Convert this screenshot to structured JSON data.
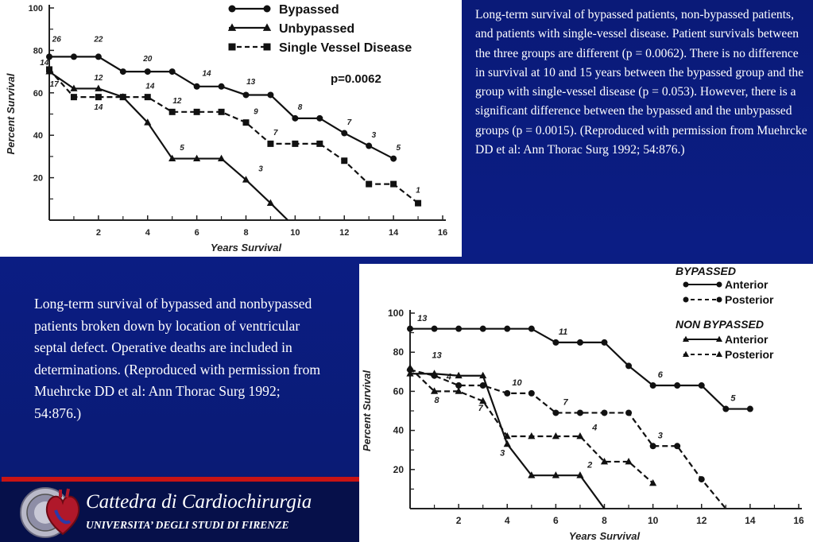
{
  "caption_top": "Long-term survival of bypassed patients, non-bypassed patients, and patients with single-vessel disease. Patient survivals between the three groups are different (p = 0.0062). There is no difference in survival at 10 and 15 years between the bypassed group and the group with single-vessel disease (p = 0.053). However, there is a significant difference between the bypassed and the unbypassed groups (p = 0.0015). (Reproduced with permission from Muehrcke DD et al: Ann Thorac Surg 1992; 54:876.)",
  "caption_bottom": "Long-term survival of bypassed and nonbypassed patients broken down by location of ventricular septal defect. Operative deaths are included in determinations. (Reproduced with permission from Muehrcke DD et al: Ann Thorac Surg 1992; 54:876.)",
  "footer": {
    "title": "Cattedra di Cardiochirurgia",
    "subtitle": "UNIVERSITA’ DEGLI STUDI DI FIRENZE"
  },
  "colors": {
    "background": "#0b1d84",
    "accent_line": "#c81414",
    "chart_ink": "#111111",
    "caption_text": "#ffffff"
  },
  "chart_data": [
    {
      "type": "line",
      "title": "",
      "xlabel": "Years Survival",
      "ylabel": "Percent Survival",
      "xlim": [
        0,
        16
      ],
      "ylim": [
        0,
        100
      ],
      "x_ticks": [
        "2",
        "4",
        "6",
        "8",
        "10",
        "12",
        "14",
        "16"
      ],
      "y_ticks": [
        "20",
        "40",
        "60",
        "80",
        "100"
      ],
      "annotation": "p=0.0062",
      "legend_position": "top-right",
      "series": [
        {
          "name": "Bypassed",
          "marker": "circle",
          "dash": "solid",
          "x": [
            0,
            1,
            2,
            3,
            4,
            5,
            6,
            7,
            8,
            9,
            10,
            11,
            12,
            13,
            14
          ],
          "y": [
            77,
            77,
            77,
            70,
            70,
            70,
            63,
            63,
            59,
            59,
            48,
            48,
            41,
            35,
            29
          ],
          "labels": [
            {
              "x": 0.3,
              "y": 84,
              "text": "26"
            },
            {
              "x": 2,
              "y": 84,
              "text": "22"
            },
            {
              "x": 4,
              "y": 75,
              "text": "20"
            },
            {
              "x": 6.4,
              "y": 68,
              "text": "14"
            },
            {
              "x": 8.2,
              "y": 64,
              "text": "13"
            },
            {
              "x": 10.2,
              "y": 52,
              "text": "8"
            },
            {
              "x": 12.2,
              "y": 45,
              "text": "7"
            },
            {
              "x": 13.2,
              "y": 39,
              "text": "3"
            },
            {
              "x": 14.2,
              "y": 33,
              "text": "5"
            }
          ]
        },
        {
          "name": "Unbypassed",
          "marker": "triangle",
          "dash": "solid",
          "x": [
            0,
            1,
            2,
            3,
            4,
            5,
            6,
            7,
            8,
            9,
            9.7
          ],
          "y": [
            70,
            62,
            62,
            58,
            46,
            29,
            29,
            29,
            19,
            8,
            0
          ],
          "labels": [
            {
              "x": 0.2,
              "y": 63,
              "text": "17"
            },
            {
              "x": 2,
              "y": 66,
              "text": "12"
            },
            {
              "x": 5.4,
              "y": 33,
              "text": "5"
            },
            {
              "x": 8.6,
              "y": 23,
              "text": "3"
            }
          ]
        },
        {
          "name": "Single Vessel Disease",
          "marker": "square",
          "dash": "dashed",
          "x": [
            0,
            1,
            2,
            3,
            4,
            5,
            6,
            7,
            8,
            9,
            10,
            11,
            12,
            13,
            14,
            15
          ],
          "y": [
            71,
            58,
            58,
            58,
            58,
            51,
            51,
            51,
            46,
            36,
            36,
            36,
            28,
            17,
            17,
            8
          ],
          "labels": [
            {
              "x": -0.2,
              "y": 73,
              "text": "14"
            },
            {
              "x": 2,
              "y": 52,
              "text": "14"
            },
            {
              "x": 4.1,
              "y": 62,
              "text": "14"
            },
            {
              "x": 5.2,
              "y": 55,
              "text": "12"
            },
            {
              "x": 8.4,
              "y": 50,
              "text": "9"
            },
            {
              "x": 9.2,
              "y": 40,
              "text": "7"
            },
            {
              "x": 15,
              "y": 13,
              "text": "1"
            }
          ]
        }
      ]
    },
    {
      "type": "line",
      "title": "",
      "xlabel": "Years Survival",
      "ylabel": "Percent Survival",
      "xlim": [
        0,
        16
      ],
      "ylim": [
        0,
        100
      ],
      "x_ticks": [
        "2",
        "4",
        "6",
        "8",
        "10",
        "12",
        "14",
        "16"
      ],
      "y_ticks": [
        "20",
        "40",
        "60",
        "80",
        "100"
      ],
      "legend_position": "top-right",
      "legend_groups": [
        {
          "heading": "BYPASSED",
          "entries": [
            "Anterior",
            "Posterior"
          ]
        },
        {
          "heading": "NON BYPASSED",
          "entries": [
            "Anterior",
            "Posterior"
          ]
        }
      ],
      "series": [
        {
          "name": "Bypassed Anterior",
          "marker": "circle",
          "dash": "solid",
          "x": [
            0,
            1,
            2,
            3,
            4,
            5,
            6,
            7,
            8,
            9,
            10,
            11,
            12,
            13,
            14
          ],
          "y": [
            92,
            92,
            92,
            92,
            92,
            92,
            85,
            85,
            85,
            73,
            63,
            63,
            63,
            51,
            51
          ],
          "labels": [
            {
              "x": 0.5,
              "y": 96,
              "text": "13"
            },
            {
              "x": 6.3,
              "y": 89,
              "text": "11"
            },
            {
              "x": 10.3,
              "y": 67,
              "text": "6"
            },
            {
              "x": 13.3,
              "y": 55,
              "text": "5"
            }
          ]
        },
        {
          "name": "Bypassed Posterior",
          "marker": "circle",
          "dash": "dashed",
          "x": [
            0,
            1,
            2,
            3,
            4,
            5,
            6,
            7,
            8,
            9,
            10,
            11,
            12,
            13
          ],
          "y": [
            71,
            68,
            63,
            63,
            59,
            59,
            49,
            49,
            49,
            49,
            32,
            32,
            15,
            0
          ],
          "labels": [
            {
              "x": 1.6,
              "y": 66,
              "text": "4"
            },
            {
              "x": 4.4,
              "y": 63,
              "text": "10"
            },
            {
              "x": 6.4,
              "y": 53,
              "text": "7"
            },
            {
              "x": 10.3,
              "y": 36,
              "text": "3"
            }
          ]
        },
        {
          "name": "Non Bypassed Anterior",
          "marker": "triangle",
          "dash": "solid",
          "x": [
            0,
            1,
            2,
            3,
            4,
            5,
            6,
            7,
            8
          ],
          "y": [
            69,
            69,
            68,
            68,
            33,
            17,
            17,
            17,
            0
          ],
          "labels": [
            {
              "x": 1.1,
              "y": 77,
              "text": "13"
            },
            {
              "x": 3.8,
              "y": 27,
              "text": "3"
            },
            {
              "x": 7.4,
              "y": 21,
              "text": "2"
            }
          ]
        },
        {
          "name": "Non Bypassed Posterior",
          "marker": "triangle",
          "dash": "dashed",
          "x": [
            0,
            1,
            2,
            3,
            4,
            5,
            6,
            7,
            8,
            9,
            10
          ],
          "y": [
            72,
            60,
            60,
            55,
            37,
            37,
            37,
            37,
            24,
            24,
            13
          ],
          "labels": [
            {
              "x": 1.1,
              "y": 54,
              "text": "8"
            },
            {
              "x": 2.9,
              "y": 50,
              "text": "7"
            },
            {
              "x": 7.6,
              "y": 40,
              "text": "4"
            }
          ]
        }
      ]
    }
  ]
}
